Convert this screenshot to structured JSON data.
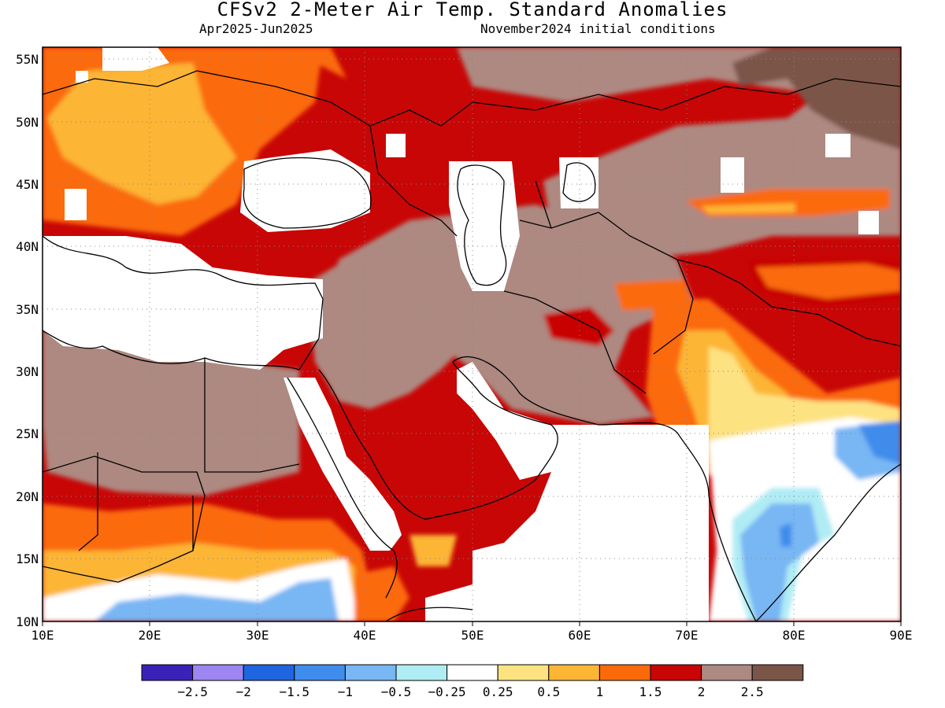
{
  "title": "CFSv2 2-Meter Air Temp. Standard Anomalies",
  "subtitle_left": "Apr2025-Jun2025",
  "subtitle_right": "November2024 initial conditions",
  "map": {
    "lon_range": [
      10,
      90
    ],
    "lat_range": [
      10,
      56
    ],
    "x_ticks": [
      "10E",
      "20E",
      "30E",
      "40E",
      "50E",
      "60E",
      "70E",
      "80E",
      "90E"
    ],
    "y_ticks": [
      "55N",
      "50N",
      "45N",
      "40N",
      "35N",
      "30N",
      "25N",
      "20N",
      "15N",
      "10N"
    ]
  },
  "colorbar": {
    "colors": [
      "#3a22b8",
      "#9d86f2",
      "#2065e0",
      "#3f8cec",
      "#78b6f4",
      "#b0ecf4",
      "#ffffff",
      "#fde281",
      "#fcb535",
      "#fb6a0a",
      "#c80606",
      "#ad8981",
      "#7b5548"
    ],
    "labels": [
      "-2.5",
      "-2",
      "-1.5",
      "-1",
      "-0.5",
      "-0.25",
      "0.25",
      "0.5",
      "1",
      "1.5",
      "2",
      "2.5"
    ]
  }
}
